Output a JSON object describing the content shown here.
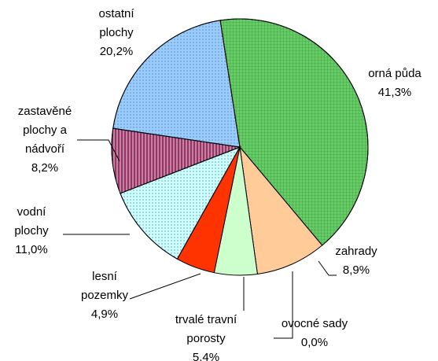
{
  "chart_data": {
    "type": "pie",
    "categories": [
      "orná půda",
      "zahrady",
      "ovocné sady",
      "trvalé travní porosty",
      "lesní pozemky",
      "vodní plochy",
      "zastavěné plochy a nádvoří",
      "ostatní plochy"
    ],
    "values": [
      41.3,
      8.9,
      0.0,
      5.4,
      4.9,
      11.0,
      8.2,
      20.2
    ],
    "value_labels": [
      "41,3%",
      "8,9%",
      "0,0%",
      "5,4%",
      "4,9%",
      "11,0%",
      "8,2%",
      "20,2%"
    ],
    "colors": [
      "#66cc66",
      "#ffcc99",
      "#ccffcc",
      "#ccffcc",
      "#ff3300",
      "#ccffff",
      "#993366",
      "#99ccff"
    ]
  }
}
